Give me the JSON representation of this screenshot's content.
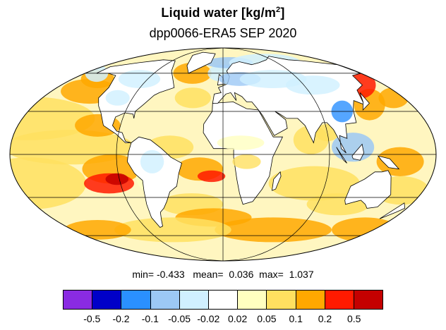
{
  "title": "Liquid water  [kg/m",
  "title_sup": "2",
  "title_close": "]",
  "subtitle": "dpp0066-ERA5 SEP 2020",
  "stats": {
    "min_label": "min=",
    "min_value": "-0.433",
    "mean_label": "mean=",
    "mean_value": "0.036",
    "max_label": "max=",
    "max_value": "1.037"
  },
  "map": {
    "projection": "mollweide",
    "grid": true,
    "colors": {
      "ocean_base": "#fff6c0",
      "land": "#ffffff",
      "coast": "#000000",
      "grid": "#000000"
    }
  },
  "colorbar": {
    "colors": [
      "#8a2be2",
      "#0000c8",
      "#2a90ff",
      "#9cc8f5",
      "#d0f0ff",
      "#ffffff",
      "#ffffc0",
      "#ffe060",
      "#ffa800",
      "#ff1a00",
      "#c40000"
    ],
    "labels": [
      "-0.5",
      "-0.2",
      "-0.1",
      "-0.05",
      "-0.02",
      "0.02",
      "0.05",
      "0.1",
      "0.2",
      "0.5"
    ]
  }
}
